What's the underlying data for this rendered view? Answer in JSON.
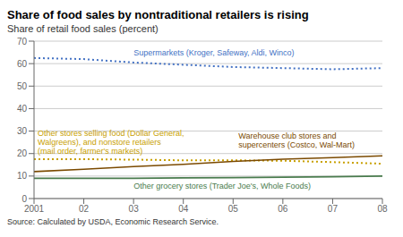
{
  "chart_data": {
    "type": "line",
    "title": "Share of food sales by nontraditional retailers is rising",
    "ylabel": "Share of retail food sales (percent)",
    "source": "Source: Calculated by USDA, Economic Research Service.",
    "x": [
      2001,
      2002,
      2003,
      2004,
      2005,
      2006,
      2007,
      2008
    ],
    "xlim": [
      2001,
      2008
    ],
    "xticks": [
      2001,
      {
        "value": 2002,
        "label": "02"
      },
      {
        "value": 2003,
        "label": "03"
      },
      {
        "value": 2004,
        "label": "04"
      },
      {
        "value": 2005,
        "label": "05"
      },
      {
        "value": 2006,
        "label": "06"
      },
      {
        "value": 2007,
        "label": "07"
      },
      {
        "value": 2008,
        "label": "08"
      }
    ],
    "ylim": [
      0,
      70
    ],
    "yticks": [
      0,
      10,
      20,
      30,
      40,
      50,
      60,
      70
    ],
    "grid": true,
    "series": [
      {
        "name": "Supermarkets (Kroger, Safeway, Aldi, Winco)",
        "color": "#4472C4",
        "line_style": "dotted",
        "values": [
          62.5,
          62.0,
          60.5,
          59.5,
          58.5,
          58.0,
          57.5,
          58.0
        ]
      },
      {
        "name": "Other stores selling food (Dollar General,\nWalgreens), and nonstore retailers\n(mail order, farmer's markets)",
        "color": "#C8A000",
        "line_style": "dotted",
        "values": [
          17.5,
          17.5,
          17.3,
          17.0,
          17.0,
          16.8,
          16.2,
          15.5
        ]
      },
      {
        "name": "Warehouse club stores and\nsupercenters (Costco, Wal-Mart)",
        "color": "#7B4A00",
        "line_style": "solid",
        "values": [
          12.0,
          13.0,
          14.2,
          15.2,
          16.5,
          17.5,
          18.2,
          19.0
        ]
      },
      {
        "name": "Other grocery stores (Trader Joe's, Whole Foods)",
        "color": "#4A7C4E",
        "line_style": "solid",
        "values": [
          9.0,
          9.0,
          9.0,
          9.2,
          9.3,
          9.5,
          9.7,
          10.0
        ]
      }
    ]
  }
}
